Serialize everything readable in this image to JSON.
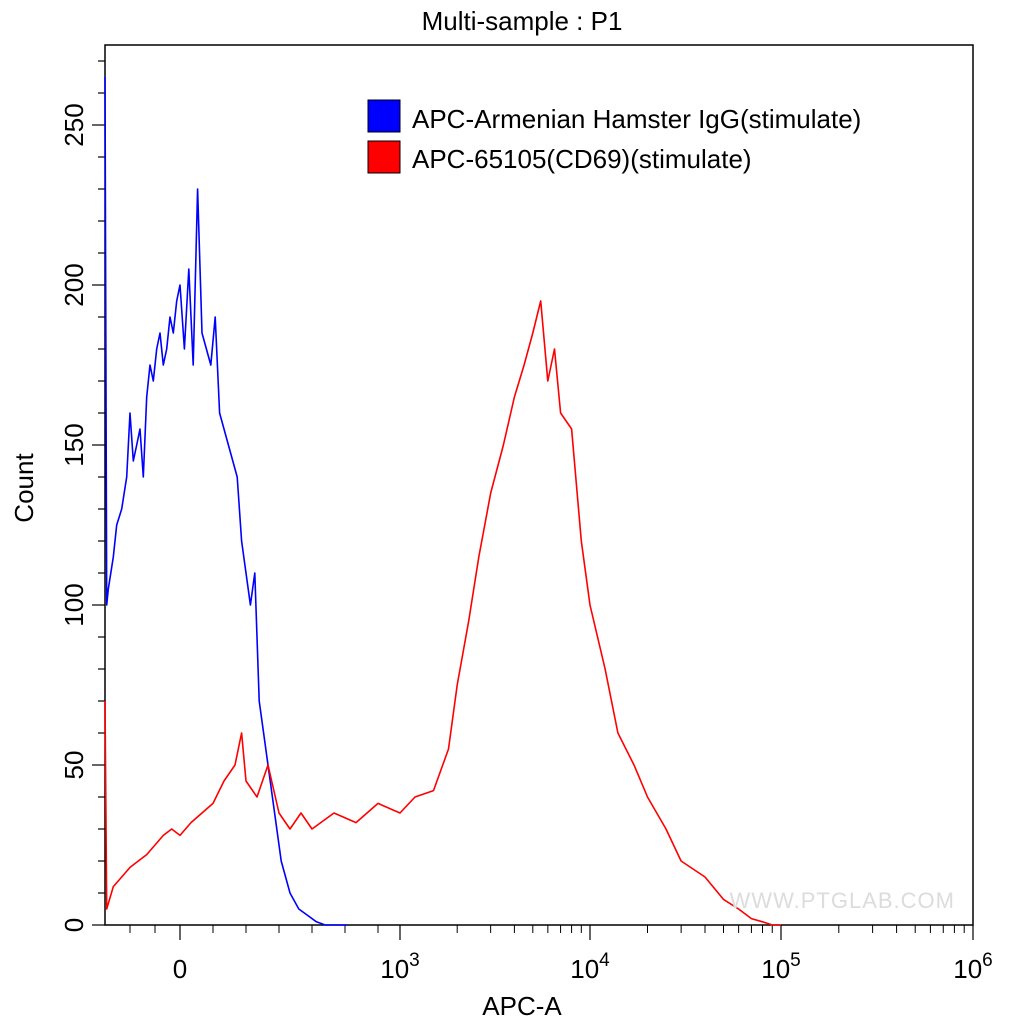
{
  "chart_data": {
    "type": "line",
    "title": "Multi-sample : P1",
    "xlabel": "APC-A",
    "ylabel": "Count",
    "xscale": "biexponential",
    "ylim": [
      0,
      275
    ],
    "yticks": [
      0,
      50,
      100,
      150,
      200,
      250
    ],
    "xticks": [
      {
        "value": 0,
        "base": "0",
        "exp": ""
      },
      {
        "value": 1000,
        "base": "10",
        "exp": "3"
      },
      {
        "value": 10000,
        "base": "10",
        "exp": "4"
      },
      {
        "value": 100000,
        "base": "10",
        "exp": "5"
      },
      {
        "value": 1000000,
        "base": "10",
        "exp": "6"
      }
    ],
    "legend_position": "top-right",
    "watermark": "WWW.PTGLAB.COM",
    "series": [
      {
        "name": "APC-Armenian Hamster IgG(stimulate)",
        "color": "#0000ff",
        "x": [
          -450,
          -440,
          -430,
          -400,
          -380,
          -350,
          -320,
          -300,
          -280,
          -260,
          -240,
          -220,
          -200,
          -180,
          -160,
          -140,
          -120,
          -100,
          -80,
          -60,
          -40,
          -20,
          0,
          20,
          40,
          60,
          80,
          100,
          120,
          140,
          160,
          180,
          200,
          220,
          240,
          260,
          280,
          300,
          320,
          340,
          360,
          380,
          400,
          420,
          440,
          460,
          480,
          500,
          540,
          580,
          620,
          660,
          700,
          760
        ],
        "y": [
          265,
          100,
          105,
          115,
          125,
          130,
          140,
          160,
          145,
          150,
          155,
          140,
          165,
          175,
          170,
          180,
          185,
          175,
          180,
          190,
          185,
          195,
          200,
          180,
          205,
          175,
          230,
          185,
          180,
          175,
          190,
          160,
          155,
          150,
          145,
          140,
          120,
          110,
          100,
          110,
          70,
          60,
          50,
          40,
          30,
          20,
          15,
          10,
          5,
          3,
          1,
          0,
          0,
          0
        ],
        "values": [
          265,
          100,
          105,
          115,
          125,
          130,
          140,
          160,
          145,
          150,
          155,
          140,
          165,
          175,
          170,
          180,
          185,
          175,
          180,
          190,
          185,
          195,
          200,
          180,
          205,
          175,
          230,
          185,
          180,
          175,
          190,
          160,
          155,
          150,
          145,
          140,
          120,
          110,
          100,
          110,
          70,
          60,
          50,
          40,
          30,
          20,
          15,
          10,
          5,
          3,
          1,
          0,
          0,
          0
        ]
      },
      {
        "name": "APC-65105(CD69)(stimulate)",
        "color": "#ff0000",
        "x": [
          -450,
          -440,
          -400,
          -350,
          -300,
          -250,
          -200,
          -150,
          -100,
          -50,
          0,
          50,
          100,
          150,
          200,
          250,
          280,
          300,
          350,
          400,
          450,
          500,
          550,
          600,
          700,
          800,
          900,
          1000,
          1200,
          1500,
          1800,
          2000,
          2300,
          2600,
          3000,
          3500,
          4000,
          4500,
          5000,
          5500,
          6000,
          6500,
          7000,
          8000,
          9000,
          10000,
          12000,
          14000,
          17000,
          20000,
          25000,
          30000,
          40000,
          50000,
          60000,
          70000,
          80000,
          90000,
          100000
        ],
        "y": [
          70,
          5,
          12,
          15,
          18,
          20,
          22,
          25,
          28,
          30,
          28,
          32,
          35,
          38,
          45,
          50,
          60,
          45,
          40,
          50,
          35,
          30,
          35,
          30,
          35,
          32,
          38,
          35,
          40,
          42,
          55,
          75,
          95,
          115,
          135,
          150,
          165,
          175,
          185,
          195,
          170,
          180,
          160,
          155,
          120,
          100,
          80,
          60,
          50,
          40,
          30,
          20,
          15,
          8,
          5,
          2,
          1,
          0,
          0
        ],
        "values": [
          70,
          5,
          12,
          15,
          18,
          20,
          22,
          25,
          28,
          30,
          28,
          32,
          35,
          38,
          45,
          50,
          60,
          45,
          40,
          50,
          35,
          30,
          35,
          30,
          35,
          32,
          38,
          35,
          40,
          42,
          55,
          75,
          95,
          115,
          135,
          150,
          165,
          175,
          185,
          195,
          170,
          180,
          160,
          155,
          120,
          100,
          80,
          60,
          50,
          40,
          30,
          20,
          15,
          8,
          5,
          2,
          1,
          0,
          0
        ]
      }
    ]
  }
}
